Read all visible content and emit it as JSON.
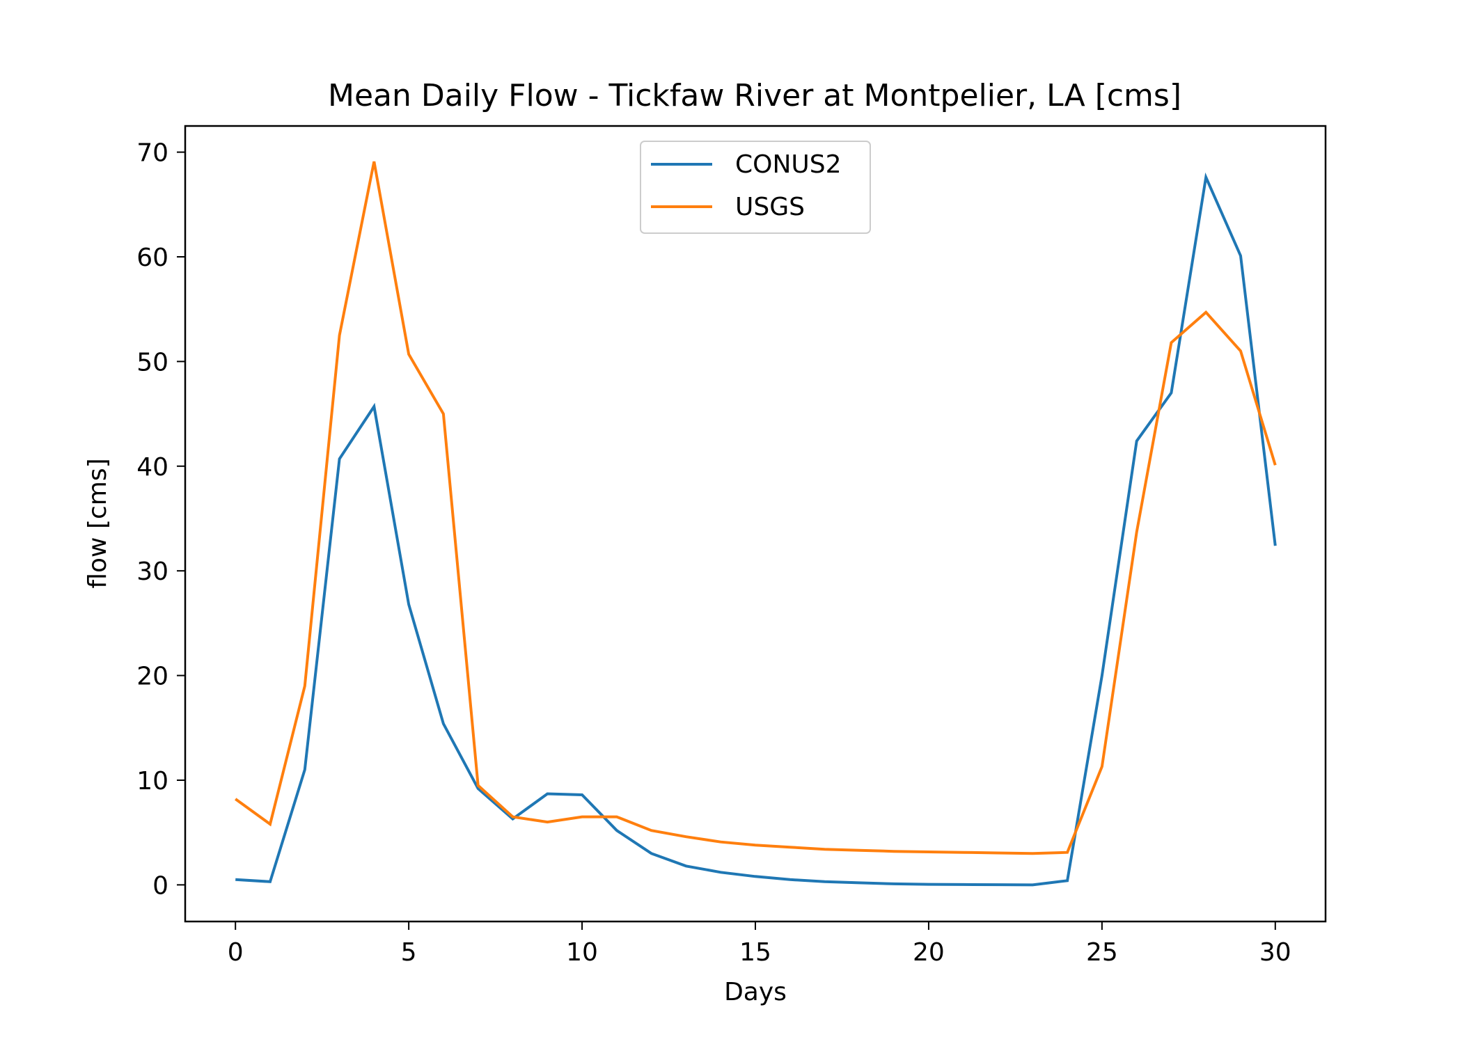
{
  "chart_data": {
    "type": "line",
    "title": "Mean Daily Flow - Tickfaw River at Montpelier, LA [cms]",
    "xlabel": "Days",
    "ylabel": "flow [cms]",
    "xlim": [
      -1.45,
      31.45
    ],
    "ylim": [
      -3.5,
      72.5
    ],
    "xticks": [
      0,
      5,
      10,
      15,
      20,
      25,
      30
    ],
    "yticks": [
      0,
      10,
      20,
      30,
      40,
      50,
      60,
      70
    ],
    "xtick_labels": [
      "0",
      "5",
      "10",
      "15",
      "20",
      "25",
      "30"
    ],
    "ytick_labels": [
      "0",
      "10",
      "20",
      "30",
      "40",
      "50",
      "60",
      "70"
    ],
    "grid": false,
    "legend_position": "upper-center",
    "x": [
      0,
      1,
      2,
      3,
      4,
      5,
      6,
      7,
      8,
      9,
      10,
      11,
      12,
      13,
      14,
      15,
      16,
      17,
      18,
      19,
      20,
      21,
      22,
      23,
      24,
      25,
      26,
      27,
      28,
      29,
      30
    ],
    "series": [
      {
        "name": "CONUS2",
        "color": "#1f77b4",
        "values": [
          0.5,
          0.3,
          11.0,
          40.7,
          45.7,
          26.8,
          15.4,
          9.2,
          6.3,
          8.7,
          8.6,
          5.2,
          3.0,
          1.8,
          1.2,
          0.8,
          0.5,
          0.3,
          0.2,
          0.1,
          0.05,
          0.03,
          0.02,
          0.0,
          0.4,
          20.0,
          42.4,
          47.0,
          67.6,
          60.1,
          32.4
        ]
      },
      {
        "name": "USGS",
        "color": "#ff7f0e",
        "values": [
          8.2,
          5.8,
          19.0,
          52.5,
          69.1,
          50.7,
          45.0,
          9.5,
          6.5,
          6.0,
          6.5,
          6.5,
          5.2,
          4.6,
          4.1,
          3.8,
          3.6,
          3.4,
          3.3,
          3.2,
          3.15,
          3.1,
          3.05,
          3.0,
          3.1,
          11.3,
          33.7,
          51.8,
          54.7,
          51.0,
          40.1
        ]
      }
    ]
  }
}
